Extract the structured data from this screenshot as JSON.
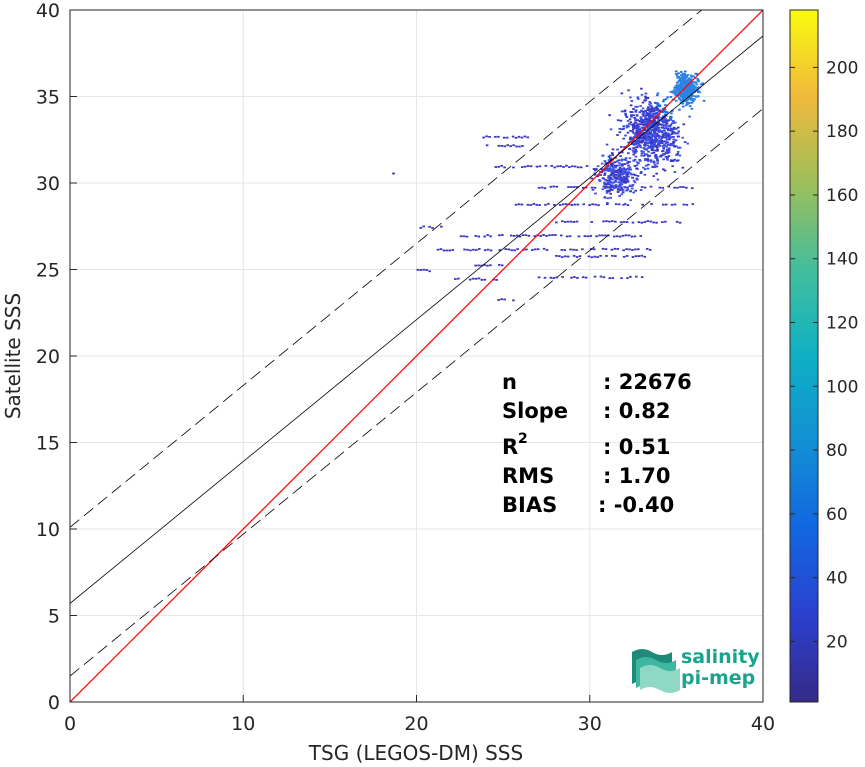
{
  "chart_data": {
    "type": "heatmap",
    "xlabel": "TSG (LEGOS-DM) SSS",
    "ylabel": "Satellite SSS",
    "xlim": [
      0,
      40
    ],
    "ylim": [
      0,
      40
    ],
    "xticks": [
      0,
      10,
      20,
      30,
      40
    ],
    "yticks": [
      0,
      5,
      10,
      15,
      20,
      25,
      30,
      35,
      40
    ],
    "grid": true,
    "colorbar": {
      "range": [
        1,
        218
      ],
      "ticks": [
        20,
        40,
        60,
        80,
        100,
        120,
        140,
        160,
        180,
        200
      ],
      "colormap": "parula",
      "location": "right"
    },
    "lines": [
      {
        "name": "identity",
        "slope": 1.0,
        "intercept": 0.0,
        "color": "#ff0000",
        "style": "solid"
      },
      {
        "name": "fit",
        "slope": 0.82,
        "intercept": 5.7,
        "color": "#000000",
        "style": "solid"
      },
      {
        "name": "fit-upper",
        "slope": 0.82,
        "intercept": 10.1,
        "color": "#000000",
        "style": "dashed"
      },
      {
        "name": "fit-lower",
        "slope": 0.82,
        "intercept": 1.5,
        "color": "#000000",
        "style": "dashed"
      }
    ],
    "density_clusters": [
      {
        "x": 33.5,
        "y": 33.0,
        "sx": 1.3,
        "sy": 1.6,
        "weight": 0.55
      },
      {
        "x": 35.5,
        "y": 35.5,
        "sx": 0.6,
        "sy": 0.7,
        "weight": 0.25
      },
      {
        "x": 31.5,
        "y": 30.5,
        "sx": 1.0,
        "sy": 1.0,
        "weight": 0.2
      }
    ],
    "sparse_rows": [
      {
        "y": 32.7,
        "x_from": 23.8,
        "x_to": 26.5
      },
      {
        "y": 32.2,
        "x_from": 24.0,
        "x_to": 26.2
      },
      {
        "y": 31.0,
        "x_from": 24.5,
        "x_to": 30.0
      },
      {
        "y": 29.8,
        "x_from": 27.0,
        "x_to": 36.0
      },
      {
        "y": 28.8,
        "x_from": 25.5,
        "x_to": 36.0
      },
      {
        "y": 27.8,
        "x_from": 28.0,
        "x_to": 36.0
      },
      {
        "y": 27.5,
        "x_from": 20.0,
        "x_to": 21.5
      },
      {
        "y": 27.0,
        "x_from": 22.5,
        "x_to": 33.0
      },
      {
        "y": 26.2,
        "x_from": 21.0,
        "x_to": 33.5
      },
      {
        "y": 25.8,
        "x_from": 28.0,
        "x_to": 33.5
      },
      {
        "y": 25.3,
        "x_from": 23.0,
        "x_to": 25.0
      },
      {
        "y": 25.0,
        "x_from": 20.0,
        "x_to": 21.0
      },
      {
        "y": 24.6,
        "x_from": 27.0,
        "x_to": 33.0
      },
      {
        "y": 24.5,
        "x_from": 22.0,
        "x_to": 25.0
      },
      {
        "y": 23.3,
        "x_from": 24.5,
        "x_to": 26.0
      }
    ],
    "outliers": [
      {
        "x": 18.6,
        "y": 30.6
      }
    ]
  },
  "stats": {
    "n_label": "n",
    "n_value": ": 22676",
    "slope_label": "Slope",
    "slope_value": ": 0.82",
    "r2_label": "R",
    "r2_sup": "2",
    "r2_value": ": 0.51",
    "rms_label": "RMS",
    "rms_value": ": 1.70",
    "bias_label": "BIAS",
    "bias_value": ": -0.40"
  },
  "logo": {
    "line1": "salinity",
    "line2": "pi-mep"
  }
}
